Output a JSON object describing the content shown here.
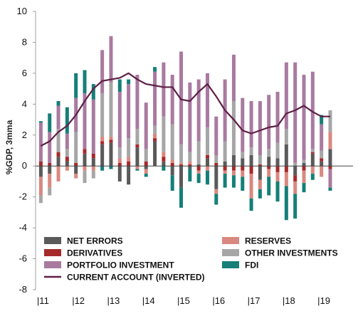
{
  "chart_data": {
    "type": "bar",
    "stacked": true,
    "ylabel": "%GDP, 3mma",
    "ylim": [
      -8,
      10
    ],
    "yticks": [
      -8,
      -6,
      -4,
      -2,
      0,
      2,
      4,
      6,
      8,
      10
    ],
    "x_tick_labels": [
      "11",
      "12",
      "13",
      "14",
      "15",
      "16",
      "17",
      "18",
      "19"
    ],
    "x_tick_prefix": "|",
    "x_tick_positions": [
      2011.0,
      2012.0,
      2013.0,
      2014.0,
      2015.0,
      2016.0,
      2017.0,
      2018.0,
      2019.0
    ],
    "xlim": [
      2010.9,
      2019.95
    ],
    "x": [
      2011.05,
      2011.3,
      2011.55,
      2011.8,
      2012.05,
      2012.3,
      2012.55,
      2012.8,
      2013.05,
      2013.3,
      2013.55,
      2013.8,
      2014.05,
      2014.3,
      2014.55,
      2014.8,
      2015.05,
      2015.3,
      2015.55,
      2015.8,
      2016.05,
      2016.3,
      2016.55,
      2016.8,
      2017.05,
      2017.3,
      2017.55,
      2017.8,
      2018.05,
      2018.3,
      2018.55,
      2018.8,
      2019.05,
      2019.3
    ],
    "series": [
      {
        "name": "NET ERRORS",
        "color": "#5a5a5a",
        "values": [
          -0.7,
          -0.5,
          0.6,
          0.3,
          -0.5,
          0.8,
          0.5,
          1.4,
          1.5,
          -1.0,
          -1.2,
          1.2,
          -0.2,
          1.6,
          0.3,
          -0.6,
          -1.4,
          -0.2,
          0.1,
          0.5,
          -1.5,
          0.3,
          0.7,
          0.5,
          0.7,
          -0.9,
          0.6,
          0.5,
          1.4,
          -0.6,
          0.2,
          0.8,
          0.3,
          1.1
        ]
      },
      {
        "name": "DERIVATIVES",
        "color": "#a52a2a",
        "values": [
          0.3,
          0.2,
          0.3,
          0.3,
          0.2,
          0.3,
          0.3,
          0.2,
          0.2,
          0.2,
          0.3,
          0.2,
          0.3,
          0.2,
          0.3,
          0.2,
          0.1,
          0.1,
          -0.3,
          0.2,
          0.2,
          -0.3,
          -0.3,
          -0.3,
          -0.5,
          0.1,
          -0.2,
          -0.4,
          -0.4,
          -0.4,
          -0.3,
          0.1,
          0.2,
          -0.2
        ]
      },
      {
        "name": "RESERVES",
        "color": "#d98880",
        "values": [
          -1.2,
          -0.9,
          -1.0,
          -0.3,
          -0.3,
          -0.3,
          -0.3,
          0.3,
          0.2,
          0.3,
          0.3,
          -0.2,
          -0.3,
          0.3,
          0.3,
          0.2,
          0.1,
          0.2,
          -0.2,
          -0.3,
          -0.3,
          -0.2,
          -0.3,
          -0.4,
          -1.6,
          -0.6,
          -0.5,
          -0.6,
          -0.9,
          -0.8,
          -0.8,
          -0.5,
          -0.7,
          1.1
        ]
      },
      {
        "name": "OTHER INVESTMENTS",
        "color": "#a6a6a6",
        "values": [
          -0.5,
          -0.5,
          1.5,
          0.5,
          2.0,
          -0.8,
          -0.5,
          2.8,
          3.5,
          0.7,
          1.2,
          1.0,
          0.8,
          0.5,
          2.3,
          2.3,
          1.2,
          0.6,
          1.5,
          1.8,
          0.5,
          1.3,
          3.5,
          0.4,
          0.5,
          0.6,
          0.5,
          1.0,
          1.0,
          0.2,
          0.2,
          0.2,
          0.5,
          1.4
        ]
      },
      {
        "name": "PORTFOLIO INVESTMENT",
        "color": "#a97aa0",
        "values": [
          2.5,
          2.0,
          1.5,
          1.0,
          2.2,
          3.6,
          3.5,
          2.8,
          3.0,
          3.6,
          3.5,
          3.5,
          3.0,
          3.5,
          3.5,
          3.2,
          6.0,
          4.5,
          4.0,
          3.5,
          2.5,
          4.0,
          3.0,
          3.5,
          3.0,
          3.5,
          3.5,
          3.3,
          4.3,
          6.5,
          5.5,
          5.0,
          1.7,
          -1.2
        ]
      },
      {
        "name": "FDI",
        "color": "#157f78",
        "values": [
          0.1,
          1.2,
          0.3,
          1.7,
          1.6,
          1.5,
          1.0,
          -0.3,
          -0.2,
          0.8,
          0.3,
          -0.1,
          -0.2,
          0.3,
          -0.3,
          -1.0,
          -1.3,
          -0.8,
          -0.6,
          -0.9,
          -0.7,
          -0.9,
          -0.8,
          -0.9,
          -0.8,
          -0.6,
          -1.2,
          -1.3,
          -2.2,
          -1.6,
          -0.6,
          -0.4,
          0.6,
          -0.2
        ]
      },
      {
        "name": "CURRENT ACCOUNT (INVERTED)",
        "color": "#5e1f45",
        "kind": "line",
        "values": [
          1.3,
          1.6,
          2.2,
          2.6,
          3.3,
          4.2,
          5.0,
          5.5,
          5.6,
          5.7,
          6.0,
          5.6,
          5.3,
          5.2,
          5.1,
          5.1,
          4.3,
          4.2,
          4.8,
          5.3,
          4.5,
          3.6,
          3.0,
          2.3,
          2.1,
          2.3,
          2.5,
          2.6,
          3.4,
          3.6,
          3.9,
          3.5,
          3.2,
          3.2
        ]
      }
    ],
    "legend": {
      "placement": "bottom-inside",
      "items": [
        {
          "label": "NET ERRORS",
          "series": 0
        },
        {
          "label": "RESERVES",
          "series": 2
        },
        {
          "label": "DERIVATIVES",
          "series": 1
        },
        {
          "label": "OTHER INVESTMENTS",
          "series": 3
        },
        {
          "label": "PORTFOLIO INVESTMENT",
          "series": 4
        },
        {
          "label": "FDI",
          "series": 5
        },
        {
          "label": "CURRENT ACCOUNT (INVERTED)",
          "series": 6
        }
      ]
    },
    "grid": false
  }
}
